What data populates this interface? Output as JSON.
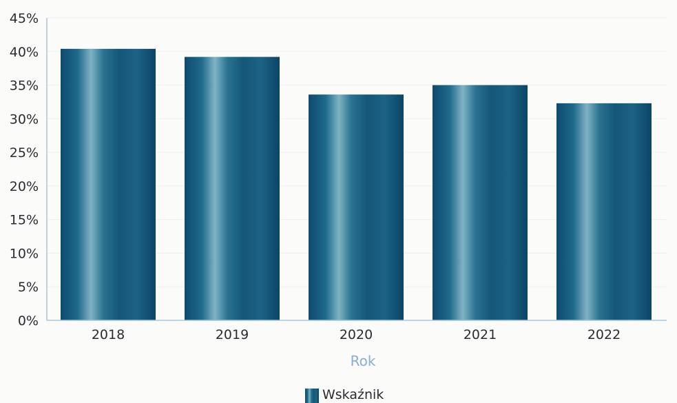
{
  "chart_data": {
    "type": "bar",
    "categories": [
      "2018",
      "2019",
      "2020",
      "2021",
      "2022"
    ],
    "series": [
      {
        "name": "Wskaźnik",
        "values": [
          40.4,
          39.2,
          33.6,
          35.0,
          32.3
        ]
      }
    ],
    "y_ticks": [
      "0%",
      "5%",
      "10%",
      "15%",
      "20%",
      "25%",
      "30%",
      "35%",
      "40%",
      "45%"
    ],
    "ylim": [
      0,
      45
    ],
    "y_unit": "%",
    "xlabel": "Rok",
    "ylabel": "",
    "legend_position": "bottom-center",
    "grid": true,
    "colors": {
      "bar_dark": "#0e4a6e",
      "bar_mid": "#1f6a8c",
      "bar_light": "#7fb3c4",
      "axis": "#a9c4d8",
      "grid": "#eeeeee",
      "axis_title": "#8aaed0"
    }
  }
}
